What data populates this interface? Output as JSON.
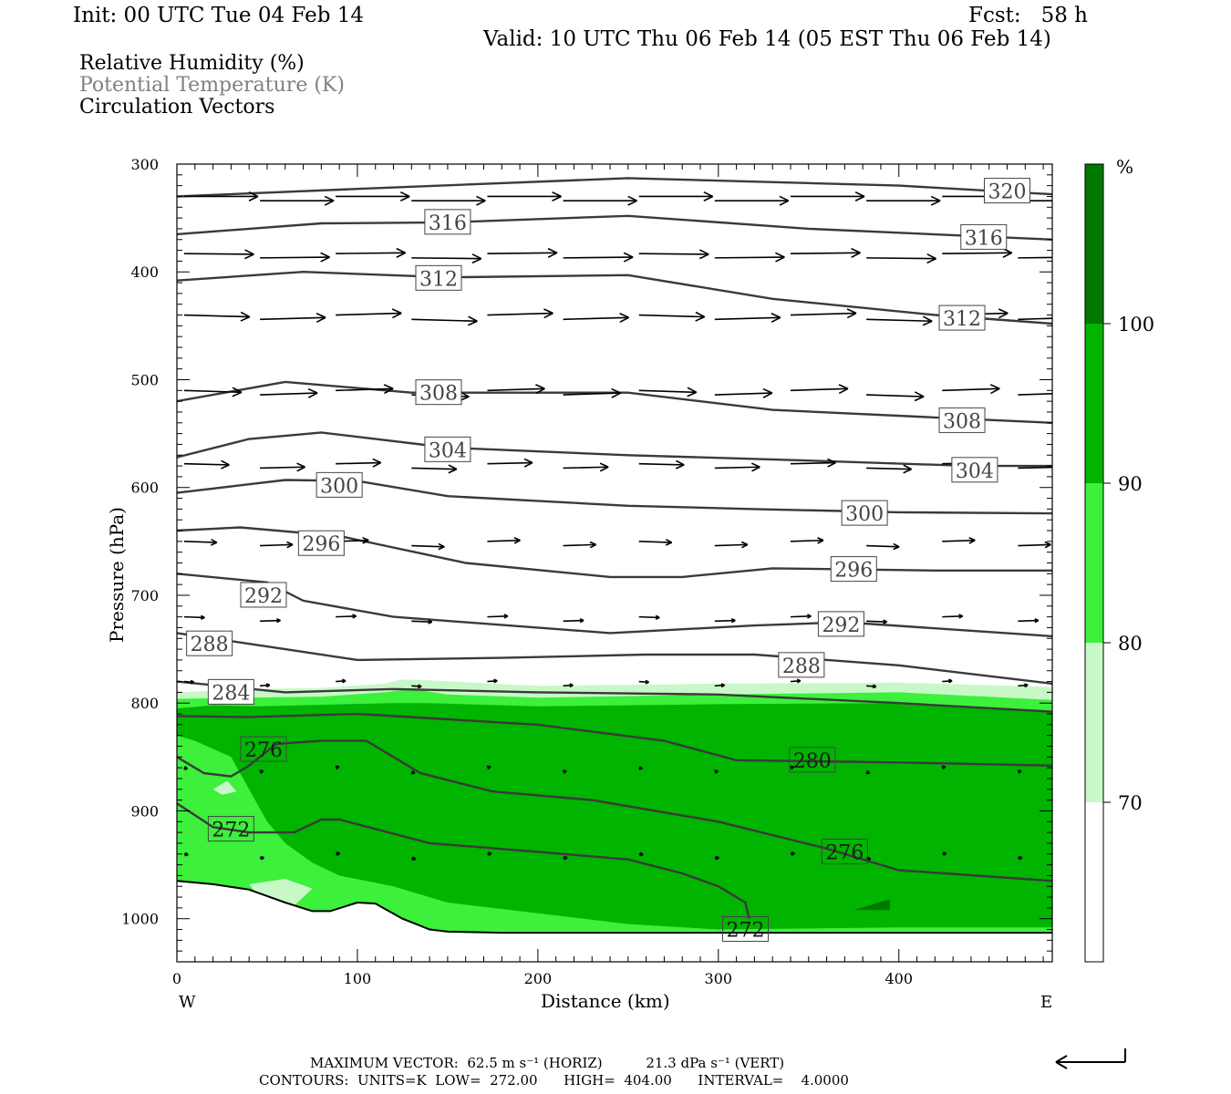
{
  "header": {
    "init": "Init: 00 UTC Tue 04 Feb 14",
    "fcst": "Fcst:   58 h",
    "valid": "Valid: 10 UTC Thu 06 Feb 14 (05 EST Thu 06 Feb 14)"
  },
  "fields": [
    {
      "label": "Relative Humidity (%)",
      "color": "#000000"
    },
    {
      "label": "Potential Temperature (K)",
      "color": "#808080"
    },
    {
      "label": "Circulation Vectors",
      "color": "#000000"
    }
  ],
  "chart_data": {
    "type": "cross-section",
    "xlabel": "Distance (km)",
    "ylabel": "Pressure (hPa)",
    "xlim": [
      0,
      485
    ],
    "ylim": [
      300,
      1040
    ],
    "y_inverted": true,
    "x_ticks": [
      0,
      100,
      200,
      300,
      400
    ],
    "y_ticks": [
      300,
      400,
      500,
      600,
      700,
      800,
      900,
      1000
    ],
    "x_end_labels": {
      "left": "W",
      "right": "E"
    },
    "colorbar": {
      "unit": "%",
      "levels": [
        70,
        80,
        90,
        100
      ],
      "colors": [
        "#ffffff",
        "#c8f8c8",
        "#3cf03c",
        "#00b400",
        "#007800"
      ]
    },
    "humidity_regions": [
      {
        "level": "70-80",
        "color": "#c8f8c8",
        "x": [
          0,
          40,
          80,
          115,
          125,
          140,
          200,
          300,
          400,
          485,
          485,
          0
        ],
        "y": [
          790,
          787,
          786,
          782,
          778,
          779,
          784,
          782,
          781,
          785,
          1012,
          1012
        ]
      },
      {
        "level": "80-90",
        "color": "#3cf03c",
        "x": [
          0,
          40,
          80,
          115,
          130,
          150,
          200,
          300,
          400,
          485,
          485,
          0
        ],
        "y": [
          796,
          795,
          794,
          790,
          787,
          792,
          795,
          792,
          790,
          797,
          1012,
          1012
        ]
      },
      {
        "level": "90-100",
        "color": "#00b400",
        "x": [
          0,
          20,
          45,
          70,
          120,
          140,
          200,
          300,
          400,
          485,
          485,
          400,
          300,
          250,
          200,
          150,
          120,
          90,
          75,
          60,
          50,
          40,
          30,
          10,
          0
        ],
        "y": [
          805,
          802,
          803,
          802,
          800,
          800,
          803,
          801,
          800,
          807,
          1008,
          1008,
          1010,
          1005,
          995,
          985,
          970,
          960,
          948,
          930,
          910,
          880,
          850,
          835,
          830
        ]
      },
      {
        "level": ">100",
        "color": "#007800",
        "x": [
          375,
          395,
          395
        ],
        "y": [
          992,
          982,
          992
        ]
      }
    ],
    "rh_light_holes": [
      {
        "x": [
          20,
          28,
          33,
          25
        ],
        "y": [
          880,
          872,
          882,
          885
        ]
      },
      {
        "x": [
          40,
          60,
          75,
          65,
          48
        ],
        "y": [
          968,
          963,
          972,
          988,
          985
        ]
      }
    ],
    "theta_contours": [
      {
        "value": 320,
        "label": "320",
        "label_at": [
          460,
          325
        ],
        "x": [
          0,
          100,
          250,
          400,
          485
        ],
        "y": [
          330,
          323,
          313,
          320,
          328
        ]
      },
      {
        "value": 316,
        "label": "316",
        "label_at": [
          150,
          354
        ],
        "x": [
          0,
          80,
          150,
          250,
          350,
          485
        ],
        "y": [
          365,
          355,
          354,
          348,
          360,
          370
        ]
      },
      {
        "value": 316,
        "label": "316",
        "label_at": [
          447,
          368
        ],
        "x": [],
        "y": []
      },
      {
        "value": 312,
        "label": "312",
        "label_at": [
          145,
          406
        ],
        "x": [
          0,
          70,
          150,
          250,
          330,
          420,
          485
        ],
        "y": [
          408,
          400,
          405,
          403,
          425,
          440,
          448
        ]
      },
      {
        "value": 312,
        "label": "312",
        "label_at": [
          435,
          443
        ],
        "x": [],
        "y": []
      },
      {
        "value": 308,
        "label": "308",
        "label_at": [
          145,
          512
        ],
        "x": [
          0,
          60,
          130,
          250,
          330,
          420,
          485
        ],
        "y": [
          520,
          502,
          512,
          512,
          528,
          535,
          540
        ]
      },
      {
        "value": 308,
        "label": "308",
        "label_at": [
          435,
          538
        ],
        "x": [],
        "y": []
      },
      {
        "value": 304,
        "label": "304",
        "label_at": [
          150,
          565
        ],
        "x": [
          0,
          40,
          80,
          150,
          250,
          350,
          440,
          485
        ],
        "y": [
          572,
          555,
          549,
          563,
          570,
          575,
          580,
          580
        ]
      },
      {
        "value": 304,
        "label": "304",
        "label_at": [
          442,
          584
        ],
        "x": [],
        "y": []
      },
      {
        "value": 300,
        "label": "300",
        "label_at": [
          90,
          598
        ],
        "x": [
          0,
          60,
          100,
          150,
          250,
          320,
          400,
          485
        ],
        "y": [
          605,
          593,
          594,
          608,
          617,
          620,
          623,
          624
        ]
      },
      {
        "value": 300,
        "label": "300",
        "label_at": [
          381,
          624
        ],
        "x": [],
        "y": []
      },
      {
        "value": 296,
        "label": "296",
        "label_at": [
          80,
          652
        ],
        "x": [
          0,
          35,
          90,
          160,
          240,
          280,
          330,
          420,
          485
        ],
        "y": [
          640,
          637,
          645,
          670,
          683,
          683,
          675,
          677,
          677
        ]
      },
      {
        "value": 296,
        "label": "296",
        "label_at": [
          375,
          676
        ],
        "x": [],
        "y": []
      },
      {
        "value": 292,
        "label": "292",
        "label_at": [
          48,
          700
        ],
        "x": [
          0,
          50,
          70,
          120,
          240,
          320,
          370,
          485
        ],
        "y": [
          680,
          688,
          705,
          720,
          735,
          728,
          725,
          738
        ]
      },
      {
        "value": 292,
        "label": "292",
        "label_at": [
          368,
          727
        ],
        "x": [],
        "y": []
      },
      {
        "value": 288,
        "label": "288",
        "label_at": [
          18,
          745
        ],
        "x": [
          0,
          60,
          100,
          180,
          260,
          320,
          400,
          485
        ],
        "y": [
          735,
          750,
          760,
          758,
          755,
          755,
          765,
          782
        ]
      },
      {
        "value": 288,
        "label": "288",
        "label_at": [
          346,
          765
        ],
        "x": [],
        "y": []
      },
      {
        "value": 284,
        "label": "284",
        "label_at": [
          30,
          790
        ],
        "x": [
          0,
          60,
          120,
          200,
          300,
          400,
          485
        ],
        "y": [
          780,
          790,
          787,
          790,
          792,
          800,
          808
        ]
      },
      {
        "value": 280,
        "label": "280",
        "label_at": [
          352,
          853
        ],
        "x": [
          0,
          40,
          100,
          150,
          200,
          270,
          310,
          400,
          485
        ],
        "y": [
          812,
          813,
          810,
          815,
          820,
          835,
          853,
          855,
          858
        ]
      },
      {
        "value": 276,
        "label": "276",
        "label_at": [
          48,
          843
        ],
        "x": [
          0,
          15,
          30,
          40,
          55,
          80,
          105,
          135,
          175,
          230,
          300,
          360,
          400,
          485
        ],
        "y": [
          850,
          865,
          868,
          858,
          838,
          835,
          835,
          865,
          882,
          890,
          910,
          935,
          955,
          965
        ]
      },
      {
        "value": 276,
        "label": "276",
        "label_at": [
          370,
          938
        ],
        "x": [],
        "y": []
      },
      {
        "value": 272,
        "label": "272",
        "label_at": [
          30,
          917
        ],
        "x": [
          0,
          20,
          40,
          65,
          80,
          90,
          140,
          200,
          250,
          280,
          300,
          315,
          317
        ],
        "y": [
          893,
          915,
          920,
          920,
          908,
          908,
          930,
          938,
          945,
          958,
          970,
          985,
          1000
        ]
      },
      {
        "value": 272,
        "label": "272",
        "label_at": [
          315,
          1010
        ],
        "x": [],
        "y": []
      }
    ],
    "ground": {
      "x": [
        0,
        20,
        40,
        60,
        75,
        85,
        100,
        110,
        125,
        140,
        150,
        180,
        250,
        350,
        485
      ],
      "y": [
        965,
        968,
        973,
        985,
        993,
        993,
        985,
        986,
        1000,
        1010,
        1012,
        1013,
        1013,
        1013,
        1013
      ]
    },
    "vector_rows": [
      {
        "p": 330,
        "dx": 0.9,
        "dy": 0.0
      },
      {
        "p": 383,
        "dx": 0.85,
        "dy": 0.02
      },
      {
        "p": 440,
        "dx": 0.8,
        "dy": 0.05
      },
      {
        "p": 510,
        "dx": 0.7,
        "dy": 0.05
      },
      {
        "p": 578,
        "dx": 0.55,
        "dy": 0.03
      },
      {
        "p": 650,
        "dx": 0.4,
        "dy": 0.03
      },
      {
        "p": 720,
        "dx": 0.25,
        "dy": 0.02
      },
      {
        "p": 780,
        "dx": 0.12,
        "dy": 0.02
      },
      {
        "p": 860,
        "dx": 0.04,
        "dy": 0.03
      },
      {
        "p": 940,
        "dx": 0.05,
        "dy": 0.02
      }
    ],
    "reference_vector": {
      "horiz": "62.5",
      "vert": "21.3"
    }
  },
  "footer": {
    "max_vector": "MAXIMUM VECTOR:  62.5 m s⁻¹ (HORIZ)          21.3 dPa s⁻¹ (VERT)",
    "contours": "CONTOURS:  UNITS=K  LOW=  272.00      HIGH=  404.00      INTERVAL=    4.0000"
  }
}
